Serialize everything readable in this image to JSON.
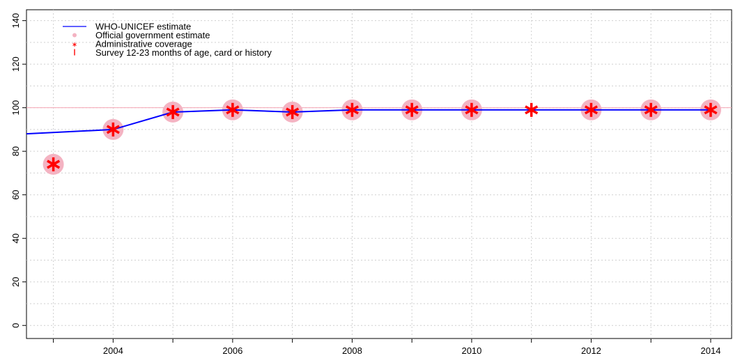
{
  "chart_data": {
    "type": "line",
    "x": [
      2003,
      2004,
      2005,
      2006,
      2007,
      2008,
      2009,
      2010,
      2011,
      2012,
      2013,
      2014
    ],
    "xlim": [
      2002.55,
      2014.35
    ],
    "ylim": [
      -6,
      145
    ],
    "x_ticks": [
      2004,
      2006,
      2008,
      2010,
      2012,
      2014
    ],
    "y_ticks": [
      0,
      20,
      40,
      60,
      80,
      100,
      120,
      140
    ],
    "reference_line": 100,
    "grid": true,
    "legend_position": "top-left",
    "series": [
      {
        "name": "WHO-UNICEF estimate",
        "kind": "line",
        "color": "#0000ff",
        "x": [
          2002.55,
          2004,
          2005,
          2006,
          2007,
          2008,
          2009,
          2010,
          2011,
          2012,
          2013,
          2014
        ],
        "values": [
          88,
          90,
          98,
          99,
          98,
          99,
          99,
          99,
          99,
          99,
          99,
          99
        ]
      },
      {
        "name": "Official government estimate",
        "kind": "circle",
        "color": "#f4b3c2",
        "x": [
          2003,
          2004,
          2005,
          2006,
          2007,
          2008,
          2009,
          2010,
          2012,
          2013,
          2014
        ],
        "values": [
          74,
          90,
          98,
          99,
          98,
          99,
          99,
          99,
          99,
          99,
          99
        ]
      },
      {
        "name": "Administrative coverage",
        "kind": "asterisk",
        "color": "#ff0000",
        "x": [
          2003,
          2004,
          2005,
          2006,
          2007,
          2008,
          2009,
          2010,
          2011,
          2012,
          2013,
          2014
        ],
        "values": [
          74,
          90,
          98,
          99,
          98,
          99,
          99,
          99,
          99,
          99,
          99,
          99
        ]
      },
      {
        "name": "Survey 12-23 months of age, card or history",
        "kind": "bar",
        "color": "#ff0000",
        "x": [],
        "values": []
      }
    ]
  }
}
